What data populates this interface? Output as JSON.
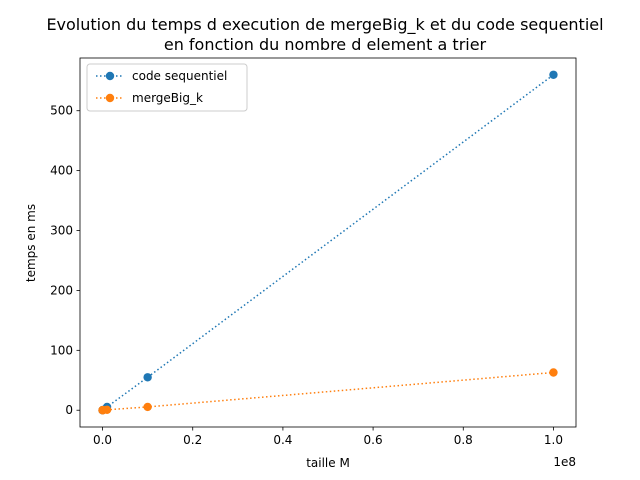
{
  "chart_data": {
    "type": "line",
    "title_line1": "Evolution du temps d execution de mergeBig_k et du code sequentiel",
    "title_line2": "en fonction du nombre d element a trier",
    "xlabel": "taille M",
    "ylabel": "temps en ms",
    "x_offset_label": "1e8",
    "xlim": [
      -5000000,
      105000000
    ],
    "ylim": [
      -28,
      588
    ],
    "x_ticks": [
      0,
      20000000,
      40000000,
      60000000,
      80000000,
      100000000
    ],
    "x_tick_labels": [
      "0.0",
      "0.2",
      "0.4",
      "0.6",
      "0.8",
      "1.0"
    ],
    "y_ticks": [
      0,
      100,
      200,
      300,
      400,
      500
    ],
    "y_tick_labels": [
      "0",
      "100",
      "200",
      "300",
      "400",
      "500"
    ],
    "legend_position": "upper-left",
    "line_style": "dotted",
    "marker": "circle",
    "grid": false,
    "series": [
      {
        "name": "code sequentiel",
        "color": "#1f77b4",
        "x": [
          1000,
          10000,
          100000,
          1000000,
          10000000,
          100000000
        ],
        "y": [
          0.006,
          0.06,
          0.55,
          5.5,
          55,
          560
        ]
      },
      {
        "name": "mergeBig_k",
        "color": "#ff7f0e",
        "x": [
          1000,
          10000,
          100000,
          1000000,
          10000000,
          100000000
        ],
        "y": [
          0.05,
          0.08,
          0.15,
          0.7,
          5.5,
          63
        ]
      }
    ]
  }
}
